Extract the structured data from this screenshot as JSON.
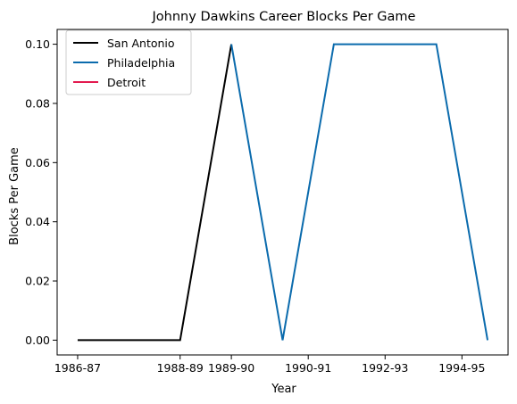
{
  "chart_data": {
    "type": "line",
    "title": "Johnny Dawkins Career Blocks Per Game",
    "xlabel": "Year",
    "ylabel": "Blocks Per Game",
    "x_positions_count": 9,
    "x_tick_labels": [
      {
        "index": 0,
        "label": "1986-87"
      },
      {
        "index": 2,
        "label": "1988-89"
      },
      {
        "index": 3,
        "label": "1989-90"
      },
      {
        "index": 4.5,
        "label": "1990-91"
      },
      {
        "index": 6,
        "label": "1992-93"
      },
      {
        "index": 7.5,
        "label": "1994-95"
      }
    ],
    "ylim": [
      -0.005,
      0.105
    ],
    "y_ticks": [
      0.0,
      0.02,
      0.04,
      0.06,
      0.08,
      0.1
    ],
    "y_tick_labels": [
      "0.00",
      "0.02",
      "0.04",
      "0.06",
      "0.08",
      "0.10"
    ],
    "xlim": [
      -0.4,
      8.4
    ],
    "grid": false,
    "legend_position": "top-left",
    "series": [
      {
        "name": "San Antonio",
        "color": "#000000",
        "points": [
          [
            0,
            0.0
          ],
          [
            1,
            0.0
          ],
          [
            2,
            0.0
          ],
          [
            3,
            0.1
          ]
        ]
      },
      {
        "name": "Philadelphia",
        "color": "#0b6bad",
        "points": [
          [
            3,
            0.1
          ],
          [
            4,
            0.0
          ],
          [
            5,
            0.1
          ],
          [
            6,
            0.1
          ],
          [
            7,
            0.1
          ],
          [
            8,
            0.0
          ]
        ]
      },
      {
        "name": "Detroit",
        "color": "#e31a4f",
        "points": []
      }
    ]
  }
}
